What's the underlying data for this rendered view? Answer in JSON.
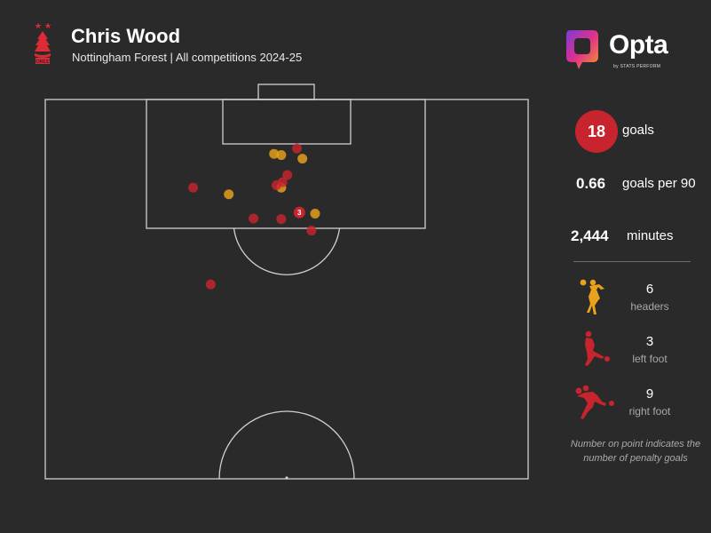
{
  "header": {
    "title": "Chris Wood",
    "subtitle": "Nottingham Forest | All competitions 2024-25",
    "crest_text": "FOREST"
  },
  "brand": {
    "name": "Opta",
    "by_line": "by STATS PERFORM"
  },
  "colors": {
    "background": "#2a2a2a",
    "pitch_lines": "#d0d0d0",
    "right_foot": "#c8242e",
    "left_foot": "#c8242e",
    "header": "#e9a21b",
    "accent_red": "#c8242e"
  },
  "stats": {
    "goals": "18",
    "goals_label": "goals",
    "goals_per_90": "0.66",
    "goals_per_90_label": "goals per 90",
    "minutes": "2,444",
    "minutes_label": "minutes"
  },
  "body_parts": [
    {
      "name": "header-icon",
      "count": "6",
      "label": "headers"
    },
    {
      "name": "left-foot-icon",
      "count": "3",
      "label": "left foot"
    },
    {
      "name": "right-foot-icon",
      "count": "9",
      "label": "right foot"
    }
  ],
  "note": "Number on point indicates the number of penalty goals",
  "chart_data": {
    "type": "scatter",
    "title": "Chris Wood",
    "subtitle": "Nottingham Forest | All competitions 2024-25",
    "xlabel": "",
    "ylabel": "",
    "pitch": "attacking half, goal at top",
    "series": [
      {
        "name": "headers",
        "color": "#e9a21b",
        "points": [
          {
            "x": 37.9,
            "y": 111.0
          },
          {
            "x": 39.1,
            "y": 110.8
          },
          {
            "x": 42.6,
            "y": 110.2
          },
          {
            "x": 30.4,
            "y": 104.3
          },
          {
            "x": 39.1,
            "y": 105.4
          },
          {
            "x": 44.7,
            "y": 101.1
          }
        ]
      },
      {
        "name": "feet",
        "color": "#c8242e",
        "points": [
          {
            "x": 41.7,
            "y": 111.9
          },
          {
            "x": 40.1,
            "y": 107.5
          },
          {
            "x": 39.3,
            "y": 106.3
          },
          {
            "x": 38.3,
            "y": 105.8
          },
          {
            "x": 24.5,
            "y": 105.4
          },
          {
            "x": 42.1,
            "y": 101.3,
            "penalties": 3
          },
          {
            "x": 34.5,
            "y": 100.3
          },
          {
            "x": 39.1,
            "y": 100.2
          },
          {
            "x": 44.1,
            "y": 98.3
          },
          {
            "x": 27.4,
            "y": 89.4
          }
        ]
      }
    ],
    "totals": {
      "goals": 18,
      "headers": 6,
      "left_foot": 3,
      "right_foot": 9,
      "penalty_goals": 3
    },
    "xlim": [
      0,
      80
    ],
    "ylim": [
      60,
      120
    ]
  }
}
